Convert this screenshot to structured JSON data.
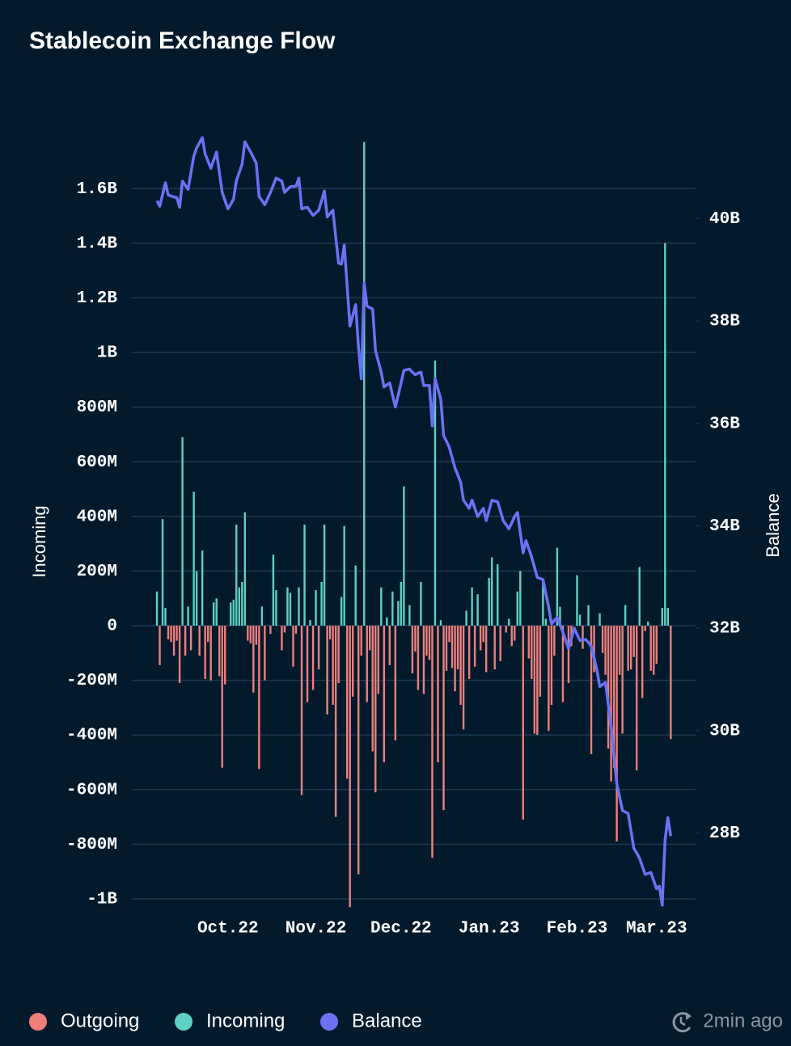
{
  "chart_data": {
    "type": "bar",
    "title": "Stablecoin Exchange Flow",
    "y_label": "Incoming",
    "y2_label": "Balance",
    "status": "2min ago",
    "categories": [
      null,
      null,
      null,
      null,
      null,
      null,
      null,
      null,
      null,
      null,
      null,
      null,
      null,
      null,
      null,
      null,
      null,
      null,
      null,
      null,
      null,
      null,
      null,
      null,
      null,
      "Oct.22",
      null,
      null,
      null,
      null,
      null,
      null,
      null,
      null,
      null,
      null,
      null,
      null,
      null,
      null,
      null,
      null,
      null,
      null,
      null,
      null,
      null,
      null,
      null,
      null,
      null,
      null,
      null,
      null,
      null,
      null,
      "Nov.22",
      null,
      null,
      null,
      null,
      null,
      null,
      null,
      null,
      null,
      null,
      null,
      null,
      null,
      null,
      null,
      null,
      null,
      null,
      null,
      null,
      null,
      null,
      null,
      null,
      null,
      null,
      null,
      null,
      null,
      "Dec.22",
      null,
      null,
      null,
      null,
      null,
      null,
      null,
      null,
      null,
      null,
      null,
      null,
      null,
      null,
      null,
      null,
      null,
      null,
      null,
      null,
      null,
      null,
      null,
      null,
      null,
      null,
      null,
      null,
      null,
      null,
      "Jan.23",
      null,
      null,
      null,
      null,
      null,
      null,
      null,
      null,
      null,
      null,
      null,
      null,
      null,
      null,
      null,
      null,
      null,
      null,
      null,
      null,
      null,
      null,
      null,
      null,
      null,
      null,
      null,
      null,
      null,
      null,
      "Feb.23",
      null,
      null,
      null,
      null,
      null,
      null,
      null,
      null,
      null,
      null,
      null,
      null,
      null,
      null,
      null,
      null,
      null,
      null,
      null,
      null,
      null,
      null,
      null,
      null,
      null,
      null,
      null,
      "Mar.23",
      null,
      null,
      null,
      null,
      null
    ],
    "series": [
      {
        "name": "Outgoing",
        "color": "#f07f7c",
        "values": [
          0,
          -145,
          0,
          0,
          -50,
          -60,
          -110,
          -55,
          -210,
          0,
          -110,
          0,
          -90,
          0,
          0,
          -110,
          0,
          -195,
          -60,
          -200,
          0,
          0,
          -185,
          -520,
          -215,
          0,
          0,
          0,
          0,
          0,
          0,
          0,
          -55,
          -65,
          -245,
          -70,
          -525,
          0,
          -200,
          0,
          -30,
          0,
          0,
          0,
          -90,
          -25,
          0,
          0,
          -150,
          -30,
          0,
          -620,
          0,
          -280,
          0,
          -235,
          0,
          -160,
          0,
          0,
          -325,
          -50,
          -290,
          -700,
          -210,
          0,
          0,
          -560,
          -1030,
          -260,
          0,
          -910,
          -110,
          0,
          -280,
          -90,
          -460,
          -610,
          -250,
          0,
          -500,
          0,
          -145,
          0,
          -420,
          0,
          0,
          0,
          0,
          0,
          -175,
          -95,
          -235,
          0,
          -250,
          -110,
          -125,
          -850,
          0,
          -500,
          0,
          -675,
          -165,
          -60,
          -155,
          -240,
          -160,
          -290,
          -380,
          0,
          -195,
          0,
          -150,
          0,
          -90,
          -60,
          -170,
          0,
          0,
          -160,
          0,
          -130,
          0,
          -25,
          0,
          -75,
          -55,
          0,
          0,
          -710,
          0,
          -120,
          -195,
          -395,
          -400,
          -260,
          0,
          0,
          -385,
          -290,
          -110,
          0,
          0,
          -280,
          0,
          -210,
          -75,
          0,
          0,
          0,
          -85,
          0,
          0,
          -470,
          -170,
          0,
          0,
          -100,
          -180,
          -450,
          -570,
          -520,
          -790,
          -180,
          -395,
          0,
          -165,
          -160,
          -115,
          -530,
          0,
          -265,
          -20,
          0,
          -165,
          -180,
          -140,
          0,
          0,
          0,
          0,
          -415
        ]
      },
      {
        "name": "Incoming",
        "color": "#5fd0c4",
        "values": [
          125,
          0,
          390,
          65,
          0,
          0,
          0,
          0,
          0,
          690,
          0,
          70,
          0,
          490,
          200,
          0,
          275,
          0,
          0,
          0,
          85,
          100,
          0,
          0,
          0,
          0,
          85,
          95,
          370,
          140,
          160,
          415,
          0,
          0,
          0,
          0,
          0,
          70,
          0,
          0,
          0,
          260,
          130,
          0,
          0,
          0,
          140,
          120,
          0,
          0,
          140,
          0,
          370,
          0,
          20,
          0,
          130,
          0,
          160,
          370,
          0,
          0,
          0,
          0,
          0,
          105,
          365,
          0,
          0,
          0,
          220,
          0,
          0,
          1770,
          0,
          0,
          0,
          0,
          0,
          140,
          0,
          30,
          0,
          125,
          0,
          90,
          160,
          510,
          0,
          75,
          0,
          0,
          0,
          160,
          0,
          0,
          0,
          0,
          970,
          0,
          20,
          0,
          0,
          0,
          0,
          0,
          0,
          0,
          0,
          55,
          0,
          140,
          0,
          115,
          0,
          0,
          0,
          175,
          250,
          0,
          225,
          0,
          0,
          0,
          25,
          0,
          0,
          125,
          200,
          0,
          0,
          0,
          0,
          0,
          0,
          0,
          170,
          25,
          0,
          0,
          0,
          285,
          70,
          0,
          0,
          0,
          0,
          0,
          185,
          40,
          0,
          0,
          75,
          0,
          0,
          0,
          45,
          0,
          0,
          0,
          0,
          0,
          0,
          0,
          0,
          75,
          0,
          0,
          0,
          0,
          215,
          0,
          0,
          15,
          0,
          0,
          0,
          0,
          65,
          1400,
          65,
          0
        ]
      },
      {
        "name": "Balance",
        "type": "line",
        "axis": "y2",
        "color": "#6a72f4",
        "values": [
          40.35,
          40.24,
          40.47,
          40.7,
          40.46,
          40.44,
          40.42,
          40.41,
          40.22,
          40.73,
          40.65,
          40.57,
          40.9,
          41.22,
          41.38,
          41.48,
          41.58,
          41.26,
          41.12,
          40.98,
          41.14,
          41.3,
          40.9,
          40.51,
          40.35,
          40.19,
          40.28,
          40.38,
          40.74,
          40.9,
          41.06,
          41.5,
          41.4,
          41.3,
          41.19,
          41.08,
          40.43,
          40.35,
          40.27,
          40.39,
          40.51,
          40.65,
          40.79,
          40.76,
          40.73,
          40.51,
          40.57,
          40.62,
          40.63,
          40.63,
          40.79,
          40.19,
          40.21,
          40.22,
          40.14,
          40.06,
          40.11,
          40.16,
          40.35,
          40.54,
          40.03,
          40.1,
          40.16,
          39.64,
          39.13,
          39.11,
          39.48,
          38.69,
          37.9,
          38.11,
          38.32,
          37.5,
          36.87,
          38.74,
          38.29,
          38.26,
          38.23,
          37.42,
          37.21,
          37.0,
          36.71,
          36.75,
          36.79,
          36.55,
          36.32,
          36.55,
          36.79,
          37.03,
          37.05,
          37.06,
          37.0,
          36.95,
          36.98,
          37.0,
          36.74,
          36.74,
          36.74,
          35.95,
          36.87,
          36.67,
          36.47,
          35.76,
          35.65,
          35.53,
          35.33,
          35.13,
          34.99,
          34.85,
          34.5,
          34.42,
          34.34,
          34.5,
          34.34,
          34.18,
          34.26,
          34.34,
          34.1,
          34.3,
          34.5,
          34.48,
          34.47,
          34.29,
          34.1,
          34.02,
          33.94,
          34.06,
          34.18,
          34.26,
          33.87,
          33.47,
          33.71,
          33.55,
          33.39,
          33.19,
          32.99,
          32.97,
          32.95,
          32.68,
          32.41,
          32.08,
          32.15,
          32.21,
          32.07,
          31.92,
          31.76,
          31.6,
          31.8,
          32.0,
          31.88,
          31.76,
          31.77,
          31.78,
          31.72,
          31.65,
          31.42,
          31.18,
          30.86,
          30.9,
          30.94,
          30.51,
          30.07,
          29.52,
          28.96,
          28.7,
          28.44,
          28.41,
          28.38,
          28.04,
          27.7,
          27.61,
          27.51,
          27.35,
          27.19,
          27.21,
          27.23,
          27.07,
          26.91,
          26.96,
          26.59,
          27.86,
          28.3,
          27.94
        ]
      }
    ],
    "ylim": [
      -1040,
      1790
    ],
    "yticks": [
      {
        "value": -1000,
        "label": "-1B"
      },
      {
        "value": -800,
        "label": "-800M"
      },
      {
        "value": -600,
        "label": "-600M"
      },
      {
        "value": -400,
        "label": "-400M"
      },
      {
        "value": -200,
        "label": "-200M"
      },
      0,
      {
        "value": 200,
        "label": "200M"
      },
      {
        "value": 400,
        "label": "400M"
      },
      {
        "value": 600,
        "label": "600M"
      },
      {
        "value": 800,
        "label": "800M"
      },
      {
        "value": 1000,
        "label": "1B"
      },
      {
        "value": 1200,
        "label": "1.2B"
      },
      {
        "value": 1400,
        "label": "1.4B"
      },
      {
        "value": 1600,
        "label": "1.6B"
      }
    ],
    "y2lim": [
      26.5,
      41.6
    ],
    "y2ticks": [
      {
        "value": 28,
        "label": "28B"
      },
      {
        "value": 30,
        "label": "30B"
      },
      {
        "value": 32,
        "label": "32B"
      },
      {
        "value": 34,
        "label": "34B"
      },
      {
        "value": 36,
        "label": "36B"
      },
      {
        "value": 38,
        "label": "38B"
      },
      {
        "value": 40,
        "label": "40B"
      }
    ],
    "grid": true,
    "legend": "bottom"
  }
}
